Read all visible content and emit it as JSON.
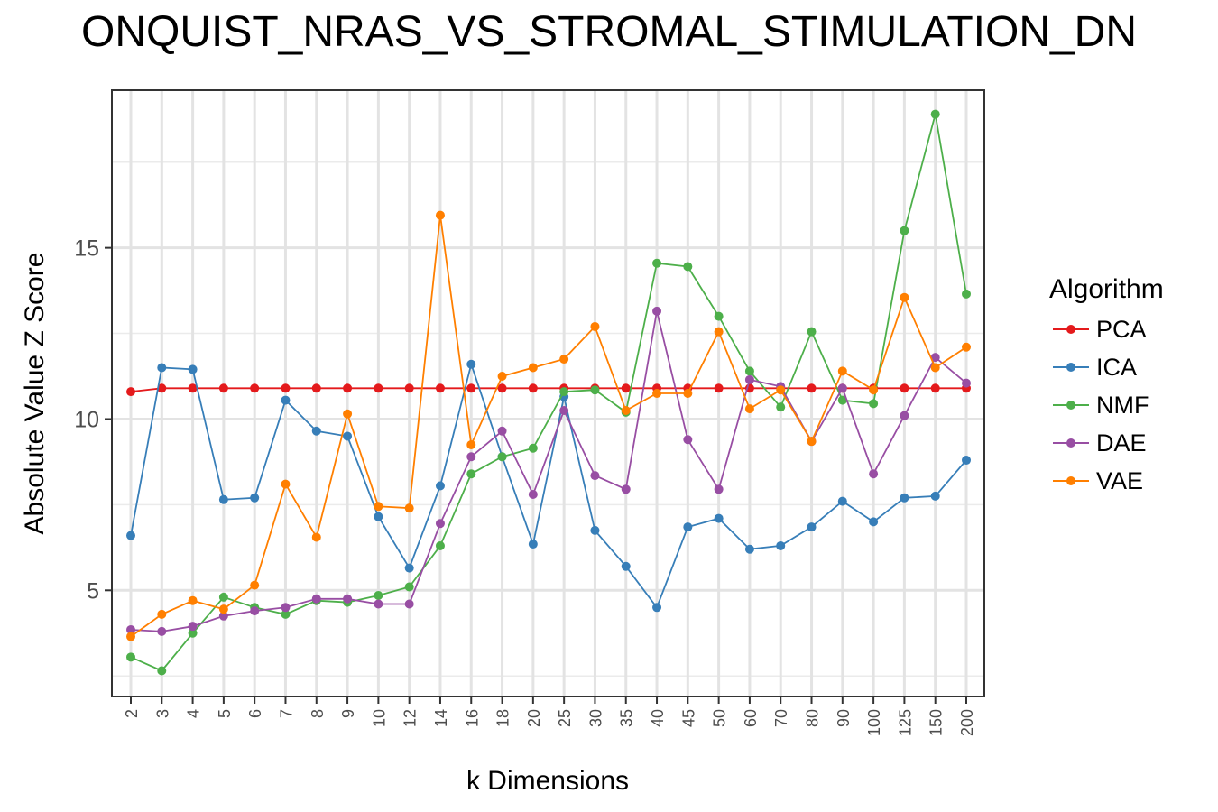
{
  "chart_data": {
    "type": "line",
    "title": "ONQUIST_NRAS_VS_STROMAL_STIMULATION_DN",
    "xlabel": "k Dimensions",
    "ylabel": "Absolute Value Z Score",
    "categories": [
      "2",
      "3",
      "4",
      "5",
      "6",
      "7",
      "8",
      "9",
      "10",
      "12",
      "14",
      "16",
      "18",
      "20",
      "25",
      "30",
      "35",
      "40",
      "45",
      "50",
      "60",
      "70",
      "80",
      "90",
      "100",
      "125",
      "150",
      "200"
    ],
    "ylim": [
      1.9,
      19.6
    ],
    "yticks": [
      5,
      10,
      15
    ],
    "grid": true,
    "legend_title": "Algorithm",
    "legend_position": "right",
    "series": [
      {
        "name": "PCA",
        "color": "#e41a1c",
        "values": [
          10.8,
          10.9,
          10.9,
          10.9,
          10.9,
          10.9,
          10.9,
          10.9,
          10.9,
          10.9,
          10.9,
          10.9,
          10.9,
          10.9,
          10.9,
          10.9,
          10.9,
          10.9,
          10.9,
          10.9,
          10.9,
          10.9,
          10.9,
          10.9,
          10.9,
          10.9,
          10.9,
          10.9
        ]
      },
      {
        "name": "ICA",
        "color": "#377eb8",
        "values": [
          6.6,
          11.5,
          11.45,
          7.65,
          7.7,
          10.55,
          9.65,
          9.5,
          7.15,
          5.65,
          8.05,
          11.6,
          8.9,
          6.35,
          10.65,
          6.75,
          5.7,
          4.5,
          6.85,
          7.1,
          6.2,
          6.3,
          6.85,
          7.6,
          7.0,
          7.7,
          7.75,
          8.8
        ]
      },
      {
        "name": "NMF",
        "color": "#4daf4a",
        "values": [
          3.05,
          2.65,
          3.75,
          4.8,
          4.5,
          4.3,
          4.7,
          4.65,
          4.85,
          5.1,
          6.3,
          8.4,
          8.9,
          9.15,
          10.8,
          10.85,
          10.2,
          14.55,
          14.45,
          13.0,
          11.4,
          10.35,
          12.55,
          10.55,
          10.45,
          15.5,
          18.9,
          13.65
        ]
      },
      {
        "name": "DAE",
        "color": "#984ea3",
        "values": [
          3.85,
          3.8,
          3.95,
          4.25,
          4.4,
          4.5,
          4.75,
          4.75,
          4.6,
          4.6,
          6.95,
          8.9,
          9.65,
          7.8,
          10.25,
          8.35,
          7.95,
          13.15,
          9.4,
          7.95,
          11.15,
          10.95,
          9.35,
          10.9,
          8.4,
          10.1,
          11.8,
          11.05
        ]
      },
      {
        "name": "VAE",
        "color": "#ff7f00",
        "values": [
          3.65,
          4.3,
          4.7,
          4.45,
          5.15,
          8.1,
          6.55,
          10.15,
          7.45,
          7.4,
          15.95,
          9.25,
          11.25,
          11.5,
          11.75,
          12.7,
          10.25,
          10.75,
          10.75,
          12.55,
          10.3,
          10.85,
          9.35,
          11.4,
          10.85,
          13.55,
          11.5,
          12.1
        ]
      }
    ]
  }
}
